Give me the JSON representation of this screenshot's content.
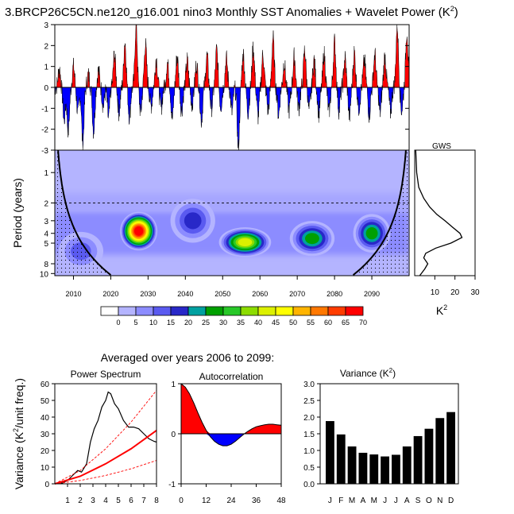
{
  "title": "3.BRCP26C5CN.ne120_g16.001 nino3 Monthly SST Anomalies + Wavelet Power (K",
  "title_sup": "2",
  "title_end": ")",
  "averaged_title": "Averaged over years 2006 to 2099:",
  "chart_data": [
    {
      "id": "sst_timeseries",
      "type": "area",
      "title": "",
      "ylim": [
        -3,
        3
      ],
      "yticks": [
        "-3",
        "-2",
        "-1",
        "0",
        "1",
        "2",
        "3"
      ],
      "xlim": [
        2005,
        2100
      ],
      "positive_color": "#ff0000",
      "negative_color": "#0000ff",
      "events": [
        {
          "t": 2006.2,
          "a": 0.9
        },
        {
          "t": 2007.5,
          "a": -1.6
        },
        {
          "t": 2008.6,
          "a": -2.1
        },
        {
          "t": 2010.0,
          "a": 1.0
        },
        {
          "t": 2011.2,
          "a": -1.3
        },
        {
          "t": 2012.5,
          "a": -2.7
        },
        {
          "t": 2014.0,
          "a": 0.6
        },
        {
          "t": 2015.4,
          "a": -2.1
        },
        {
          "t": 2016.7,
          "a": 0.8
        },
        {
          "t": 2018.0,
          "a": -0.9
        },
        {
          "t": 2019.4,
          "a": -1.5
        },
        {
          "t": 2021.0,
          "a": 1.6
        },
        {
          "t": 2022.2,
          "a": -1.2
        },
        {
          "t": 2023.8,
          "a": 2.2
        },
        {
          "t": 2025.0,
          "a": -1.4
        },
        {
          "t": 2026.8,
          "a": 3.0
        },
        {
          "t": 2028.0,
          "a": -1.2
        },
        {
          "t": 2029.3,
          "a": 2.1
        },
        {
          "t": 2030.8,
          "a": -0.9
        },
        {
          "t": 2032.2,
          "a": 1.4
        },
        {
          "t": 2033.5,
          "a": -1.0
        },
        {
          "t": 2035.2,
          "a": 1.2
        },
        {
          "t": 2036.5,
          "a": -1.5
        },
        {
          "t": 2037.8,
          "a": 1.5
        },
        {
          "t": 2039.0,
          "a": -1.1
        },
        {
          "t": 2040.5,
          "a": 1.3
        },
        {
          "t": 2041.8,
          "a": -0.8
        },
        {
          "t": 2043.0,
          "a": 1.1
        },
        {
          "t": 2044.3,
          "a": -1.6
        },
        {
          "t": 2045.8,
          "a": 1.5
        },
        {
          "t": 2047.0,
          "a": -1.0
        },
        {
          "t": 2048.4,
          "a": 1.8
        },
        {
          "t": 2049.5,
          "a": -0.9
        },
        {
          "t": 2051.0,
          "a": 1.4
        },
        {
          "t": 2052.5,
          "a": -1.2
        },
        {
          "t": 2054.2,
          "a": -2.9
        },
        {
          "t": 2055.5,
          "a": 1.6
        },
        {
          "t": 2056.8,
          "a": -1.2
        },
        {
          "t": 2058.2,
          "a": 1.9
        },
        {
          "t": 2059.5,
          "a": -1.4
        },
        {
          "t": 2060.8,
          "a": 1.6
        },
        {
          "t": 2062.2,
          "a": -1.1
        },
        {
          "t": 2063.5,
          "a": 2.4
        },
        {
          "t": 2065.0,
          "a": -1.3
        },
        {
          "t": 2066.5,
          "a": 1.2
        },
        {
          "t": 2067.8,
          "a": -1.1
        },
        {
          "t": 2069.2,
          "a": 1.5
        },
        {
          "t": 2070.4,
          "a": -1.0
        },
        {
          "t": 2072.0,
          "a": 1.8
        },
        {
          "t": 2073.2,
          "a": -1.1
        },
        {
          "t": 2074.5,
          "a": 1.3
        },
        {
          "t": 2075.8,
          "a": -1.3
        },
        {
          "t": 2077.2,
          "a": 1.6
        },
        {
          "t": 2078.5,
          "a": -1.2
        },
        {
          "t": 2080.0,
          "a": 2.2
        },
        {
          "t": 2081.2,
          "a": -1.1
        },
        {
          "t": 2082.8,
          "a": 1.4
        },
        {
          "t": 2084.0,
          "a": -1.4
        },
        {
          "t": 2085.3,
          "a": 1.7
        },
        {
          "t": 2086.5,
          "a": -1.0
        },
        {
          "t": 2088.0,
          "a": 1.3
        },
        {
          "t": 2089.3,
          "a": -1.3
        },
        {
          "t": 2090.8,
          "a": 1.6
        },
        {
          "t": 2092.2,
          "a": -1.2
        },
        {
          "t": 2093.5,
          "a": 1.5
        },
        {
          "t": 2095.0,
          "a": -1.2
        },
        {
          "t": 2096.8,
          "a": 3.0
        },
        {
          "t": 2098.0,
          "a": -1.1
        },
        {
          "t": 2099.4,
          "a": 2.7
        }
      ]
    },
    {
      "id": "wavelet_power",
      "type": "heatmap",
      "ylabel": "Period (years)",
      "yticks": [
        "1",
        "2",
        "3",
        "4",
        "5",
        "8",
        "10"
      ],
      "xticks": [
        "2010",
        "2020",
        "2030",
        "2040",
        "2050",
        "2060",
        "2070",
        "2080",
        "2090"
      ],
      "xlim": [
        2005,
        2100
      ],
      "ylim": [
        0.6,
        10.5
      ],
      "y_scale": "log",
      "dashed_period": 2,
      "colorbar_labels": [
        "0",
        "5",
        "10",
        "15",
        "20",
        "25",
        "30",
        "35",
        "40",
        "45",
        "50",
        "55",
        "60",
        "65",
        "70"
      ],
      "colorbar_colors": [
        "#ffffff",
        "#b4b4ff",
        "#8c8cff",
        "#5a5af0",
        "#2828c8",
        "#00a0a0",
        "#00a000",
        "#28c828",
        "#8cdc00",
        "#dcf000",
        "#ffff00",
        "#ffb400",
        "#ff7800",
        "#ff3c00",
        "#ff0000"
      ],
      "blobs": [
        {
          "t": 2027.5,
          "p": 3.8,
          "level": 70,
          "wt": 5,
          "wp": 0.22
        },
        {
          "t": 2056.0,
          "p": 4.9,
          "level": 45,
          "wt": 7,
          "wp": 0.17
        },
        {
          "t": 2074.0,
          "p": 4.5,
          "level": 30,
          "wt": 6,
          "wp": 0.2
        },
        {
          "t": 2090.0,
          "p": 4.0,
          "level": 30,
          "wt": 5,
          "wp": 0.22
        },
        {
          "t": 2042.0,
          "p": 3.0,
          "level": 20,
          "wt": 6,
          "wp": 0.25
        },
        {
          "t": 2012.0,
          "p": 6.0,
          "level": 15,
          "wt": 6,
          "wp": 0.22
        }
      ]
    },
    {
      "id": "global_wavelet_spectrum",
      "type": "line",
      "title": "GWS",
      "xlabel": "K",
      "xlabel_sup": "2",
      "xticks": [
        "10",
        "20",
        "30"
      ],
      "xlim": [
        0,
        30
      ],
      "points": [
        {
          "period": 0.6,
          "power": 0.5
        },
        {
          "period": 1.0,
          "power": 1.0
        },
        {
          "period": 1.4,
          "power": 2.0
        },
        {
          "period": 1.8,
          "power": 4.5
        },
        {
          "period": 2.2,
          "power": 7.5
        },
        {
          "period": 2.6,
          "power": 11.0
        },
        {
          "period": 3.0,
          "power": 15.0
        },
        {
          "period": 3.5,
          "power": 19.0
        },
        {
          "period": 4.0,
          "power": 22.5
        },
        {
          "period": 4.4,
          "power": 23.5
        },
        {
          "period": 5.0,
          "power": 18.0
        },
        {
          "period": 5.6,
          "power": 10.5
        },
        {
          "period": 6.3,
          "power": 5.5
        },
        {
          "period": 7.0,
          "power": 4.5
        },
        {
          "period": 8.0,
          "power": 6.5
        },
        {
          "period": 9.0,
          "power": 5.0
        },
        {
          "period": 10.5,
          "power": 2.5
        }
      ]
    },
    {
      "id": "power_spectrum",
      "type": "line",
      "title": "Power Spectrum",
      "ylabel": "Variance (K",
      "ylabel_sup": "2",
      "ylabel_end": "/unit freq.)",
      "xticks": [
        "1",
        "2",
        "3",
        "4",
        "5",
        "6",
        "7",
        "8"
      ],
      "yticks": [
        "0",
        "10",
        "20",
        "30",
        "40",
        "50",
        "60"
      ],
      "xlim": [
        0,
        8
      ],
      "ylim": [
        0,
        60
      ],
      "series": [
        {
          "style": "spectrum",
          "x": [
            0.2,
            0.6,
            1.0,
            1.4,
            1.8,
            2.1,
            2.5,
            2.8,
            3.1,
            3.4,
            3.7,
            4.0,
            4.2,
            4.4,
            4.7,
            5.0,
            5.4,
            5.8,
            6.2,
            6.6,
            7.0,
            7.4,
            7.8,
            8.0
          ],
          "y": [
            0.2,
            0.5,
            2.0,
            5.0,
            8.0,
            7.0,
            12.0,
            25.0,
            33.0,
            38.0,
            46.0,
            50.0,
            55.0,
            54.0,
            48.0,
            45.0,
            38.0,
            34.0,
            34.0,
            33.0,
            30.0,
            27.0,
            25.5,
            25.0
          ]
        },
        {
          "style": "red-noise",
          "x": [
            0,
            2,
            4,
            6,
            8
          ],
          "y": [
            0,
            4.5,
            12,
            21,
            32
          ]
        },
        {
          "style": "confidence",
          "x": [
            0,
            2,
            4,
            6,
            8
          ],
          "y": [
            0,
            8,
            21,
            37,
            56
          ]
        },
        {
          "style": "confidence",
          "x": [
            0,
            2,
            4,
            6,
            8
          ],
          "y": [
            0,
            2,
            5,
            9,
            14
          ]
        }
      ]
    },
    {
      "id": "autocorrelation",
      "type": "area",
      "title": "Autocorrelation",
      "xticks": [
        "0",
        "12",
        "24",
        "36",
        "48"
      ],
      "yticks": [
        "-1",
        "0",
        "1"
      ],
      "xlim": [
        0,
        48
      ],
      "ylim": [
        -1,
        1
      ],
      "x": [
        0,
        2,
        4,
        6,
        8,
        10,
        12,
        14,
        16,
        18,
        20,
        22,
        24,
        26,
        28,
        30,
        32,
        34,
        36,
        38,
        40,
        42,
        44,
        46,
        48
      ],
      "y": [
        1.0,
        0.93,
        0.8,
        0.62,
        0.42,
        0.23,
        0.07,
        -0.06,
        -0.15,
        -0.21,
        -0.24,
        -0.24,
        -0.21,
        -0.15,
        -0.08,
        -0.01,
        0.05,
        0.1,
        0.14,
        0.16,
        0.18,
        0.19,
        0.19,
        0.18,
        0.17
      ]
    },
    {
      "id": "monthly_variance",
      "type": "bar",
      "title": "Variance (K",
      "title_sup": "2",
      "title_end": ")",
      "categories": [
        "J",
        "F",
        "M",
        "A",
        "M",
        "J",
        "J",
        "A",
        "S",
        "O",
        "N",
        "D"
      ],
      "values": [
        1.88,
        1.48,
        1.12,
        0.93,
        0.88,
        0.82,
        0.87,
        1.12,
        1.43,
        1.65,
        1.97,
        2.15
      ],
      "yticks": [
        "0.0",
        "0.5",
        "1.0",
        "1.5",
        "2.0",
        "2.5",
        "3.0"
      ],
      "ylim": [
        0,
        3
      ]
    }
  ]
}
